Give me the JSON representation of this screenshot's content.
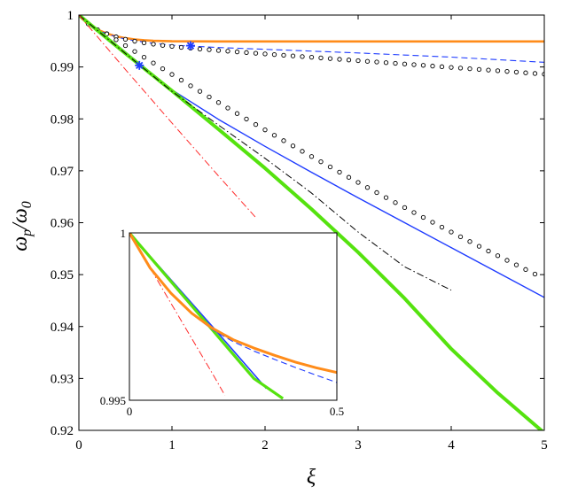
{
  "chart_data": [
    {
      "type": "line",
      "xlabel": "ξ",
      "ylabel": "ωp/ω0",
      "xlim": [
        0,
        5
      ],
      "ylim": [
        0.92,
        1.0
      ],
      "xticks": [
        0,
        1,
        2,
        3,
        4,
        5
      ],
      "xtick_labels": [
        "0",
        "1",
        "2",
        "3",
        "4",
        "5"
      ],
      "yticks": [
        0.92,
        0.93,
        0.94,
        0.95,
        0.96,
        0.97,
        0.98,
        0.99,
        1.0
      ],
      "ytick_labels": [
        "0.92",
        "0.93",
        "0.94",
        "0.95",
        "0.96",
        "0.97",
        "0.98",
        "0.99",
        "1"
      ],
      "grid": false,
      "series": [
        {
          "style": "solid",
          "color": "#ff8c1a",
          "width": 2.6,
          "x": [
            0,
            0.1,
            0.2,
            0.3,
            0.4,
            0.5,
            0.6,
            0.7,
            0.8,
            0.9,
            1.0,
            1.5,
            2.0,
            3.0,
            4.0,
            5.0
          ],
          "y": [
            1.0,
            0.9982,
            0.9972,
            0.99645,
            0.9959,
            0.99555,
            0.9953,
            0.99515,
            0.99505,
            0.995,
            0.99495,
            0.99492,
            0.99492,
            0.99492,
            0.99492,
            0.99492
          ]
        },
        {
          "style": "dashed",
          "color": "#1f3cff",
          "width": 1.1,
          "x": [
            0,
            0.1,
            0.2,
            0.3,
            0.5,
            0.75,
            1.0,
            1.5,
            2.0,
            2.5,
            3.0,
            3.5,
            4.0,
            4.5,
            5.0
          ],
          "y": [
            1.0,
            0.9982,
            0.99715,
            0.99635,
            0.99535,
            0.99465,
            0.9942,
            0.99375,
            0.9934,
            0.99305,
            0.9927,
            0.9923,
            0.9919,
            0.9914,
            0.9909
          ]
        },
        {
          "style": "markers",
          "color": "#000000",
          "marker": "circle",
          "x": [
            0,
            0.1,
            0.2,
            0.3,
            0.4,
            0.5,
            0.6,
            0.7,
            0.8,
            0.9,
            1.0,
            1.1,
            1.2,
            1.3,
            1.4,
            1.5,
            1.6,
            1.7,
            1.8,
            1.9,
            2.0,
            2.1,
            2.2,
            2.3,
            2.4,
            2.5,
            2.6,
            2.7,
            2.8,
            2.9,
            3.0,
            3.1,
            3.2,
            3.3,
            3.4,
            3.5,
            3.6,
            3.7,
            3.8,
            3.9,
            4.0,
            4.1,
            4.2,
            4.3,
            4.4,
            4.5,
            4.6,
            4.7,
            4.8,
            4.9,
            5.0
          ],
          "y": [
            1.0,
            0.99829,
            0.99718,
            0.99641,
            0.99581,
            0.99533,
            0.99496,
            0.99465,
            0.99439,
            0.99416,
            0.99396,
            0.99378,
            0.99362,
            0.99346,
            0.99332,
            0.99318,
            0.99304,
            0.99291,
            0.99278,
            0.99265,
            0.99252,
            0.99239,
            0.99226,
            0.99213,
            0.992,
            0.99187,
            0.99174,
            0.99161,
            0.99148,
            0.99135,
            0.99122,
            0.99109,
            0.99096,
            0.99083,
            0.9907,
            0.99057,
            0.99044,
            0.99031,
            0.99018,
            0.99005,
            0.98992,
            0.98979,
            0.98966,
            0.98953,
            0.9894,
            0.98927,
            0.98914,
            0.98901,
            0.98888,
            0.98875,
            0.98862
          ]
        },
        {
          "style": "markers",
          "color": "#000000",
          "marker": "circle",
          "x": [
            0.3,
            0.4,
            0.5,
            0.6,
            0.7,
            0.8,
            0.9,
            1.0,
            1.1,
            1.2,
            1.3,
            1.4,
            1.5,
            1.6,
            1.7,
            1.8,
            1.9,
            2.0,
            2.1,
            2.2,
            2.3,
            2.4,
            2.5,
            2.6,
            2.7,
            2.8,
            2.9,
            3.0,
            3.1,
            3.2,
            3.3,
            3.4,
            3.5,
            3.6,
            3.7,
            3.8,
            3.9,
            4.0,
            4.1,
            4.2,
            4.3,
            4.4,
            4.5,
            4.6,
            4.7,
            4.8,
            4.9
          ],
          "y": [
            0.99637,
            0.99524,
            0.99411,
            0.99299,
            0.99188,
            0.99077,
            0.98966,
            0.98856,
            0.98747,
            0.98638,
            0.9853,
            0.98422,
            0.98315,
            0.98209,
            0.98103,
            0.97997,
            0.97892,
            0.97788,
            0.97684,
            0.97581,
            0.97479,
            0.97376,
            0.97275,
            0.97174,
            0.97074,
            0.96974,
            0.96875,
            0.96776,
            0.96678,
            0.96581,
            0.96484,
            0.96387,
            0.96292,
            0.96196,
            0.96102,
            0.96008,
            0.95914,
            0.95821,
            0.95729,
            0.95637,
            0.95546,
            0.95455,
            0.95365,
            0.95276,
            0.95187,
            0.95099,
            0.95011
          ]
        },
        {
          "style": "solid",
          "color": "#1f3cff",
          "width": 1.4,
          "x": [
            0,
            0.5,
            1.0,
            1.5,
            2.0,
            2.5,
            3.0,
            3.5,
            4.0,
            4.5,
            5.0
          ],
          "y": [
            1.0,
            0.9929,
            0.9856,
            0.9799,
            0.9747,
            0.9697,
            0.9648,
            0.96,
            0.9552,
            0.9504,
            0.9456
          ]
        },
        {
          "style": "solid",
          "color": "#55e20f",
          "width": 4.0,
          "x": [
            0,
            0.5,
            1.0,
            1.5,
            2.0,
            2.5,
            3.0,
            3.5,
            4.0,
            4.5,
            5.0
          ],
          "y": [
            1.0,
            0.9926,
            0.9854,
            0.978,
            0.9705,
            0.9626,
            0.9543,
            0.9454,
            0.9357,
            0.9272,
            0.9195
          ]
        },
        {
          "style": "dashdot",
          "color": "#000000",
          "width": 1.0,
          "x": [
            0,
            0.5,
            1.0,
            1.5,
            2.0,
            2.5,
            3.0,
            3.5,
            4.0
          ],
          "y": [
            1.0,
            0.9926,
            0.9853,
            0.9788,
            0.9724,
            0.9657,
            0.9582,
            0.9515,
            0.947
          ]
        },
        {
          "style": "dashdot",
          "color": "#ff2a2a",
          "width": 1.0,
          "x": [
            0,
            0.5,
            1.0,
            1.5,
            1.9
          ],
          "y": [
            1.0,
            0.9895,
            0.9792,
            0.969,
            0.961
          ]
        }
      ],
      "special_points": [
        {
          "marker": "asterisk",
          "color": "#1f3cff",
          "x": 1.2,
          "y": 0.9941
        },
        {
          "marker": "asterisk",
          "color": "#1f3cff",
          "x": 0.65,
          "y": 0.9903
        }
      ]
    },
    {
      "type": "line",
      "xlabel": "",
      "ylabel": "",
      "xlim": [
        0,
        0.5
      ],
      "ylim": [
        0.995,
        1.0
      ],
      "xtick_labels": [
        "0",
        "0.5"
      ],
      "ytick_labels": [
        "0.995",
        "1"
      ],
      "grid": false,
      "series": [
        {
          "style": "dashdot",
          "color": "#ff2a2a",
          "width": 1.0,
          "x": [
            0,
            0.1,
            0.2,
            0.23
          ],
          "y": [
            1.0,
            0.9979,
            0.9958,
            0.99515
          ]
        },
        {
          "style": "solid",
          "color": "#1f3cff",
          "width": 1.6,
          "x": [
            0,
            0.1,
            0.2,
            0.33
          ],
          "y": [
            1.0,
            0.9986,
            0.9972,
            0.99535
          ]
        },
        {
          "style": "solid",
          "color": "#55e20f",
          "width": 3.2,
          "x": [
            0,
            0.1,
            0.2,
            0.3,
            0.37
          ],
          "y": [
            1.0,
            0.99855,
            0.9971,
            0.99565,
            0.99505
          ]
        },
        {
          "style": "dashed",
          "color": "#1f3cff",
          "width": 1.1,
          "x": [
            0,
            0.05,
            0.1,
            0.15,
            0.2,
            0.25,
            0.3,
            0.35,
            0.4,
            0.45,
            0.5
          ],
          "y": [
            1.0,
            0.99897,
            0.99822,
            0.99758,
            0.99711,
            0.99675,
            0.99647,
            0.99622,
            0.99598,
            0.99575,
            0.99553
          ]
        },
        {
          "style": "solid",
          "color": "#ff8c1a",
          "width": 3.0,
          "x": [
            0,
            0.05,
            0.1,
            0.15,
            0.2,
            0.25,
            0.3,
            0.35,
            0.4,
            0.45,
            0.5
          ],
          "y": [
            1.0,
            0.99895,
            0.9982,
            0.9976,
            0.99715,
            0.99681,
            0.99656,
            0.99634,
            0.99614,
            0.99597,
            0.99583
          ]
        }
      ]
    }
  ]
}
